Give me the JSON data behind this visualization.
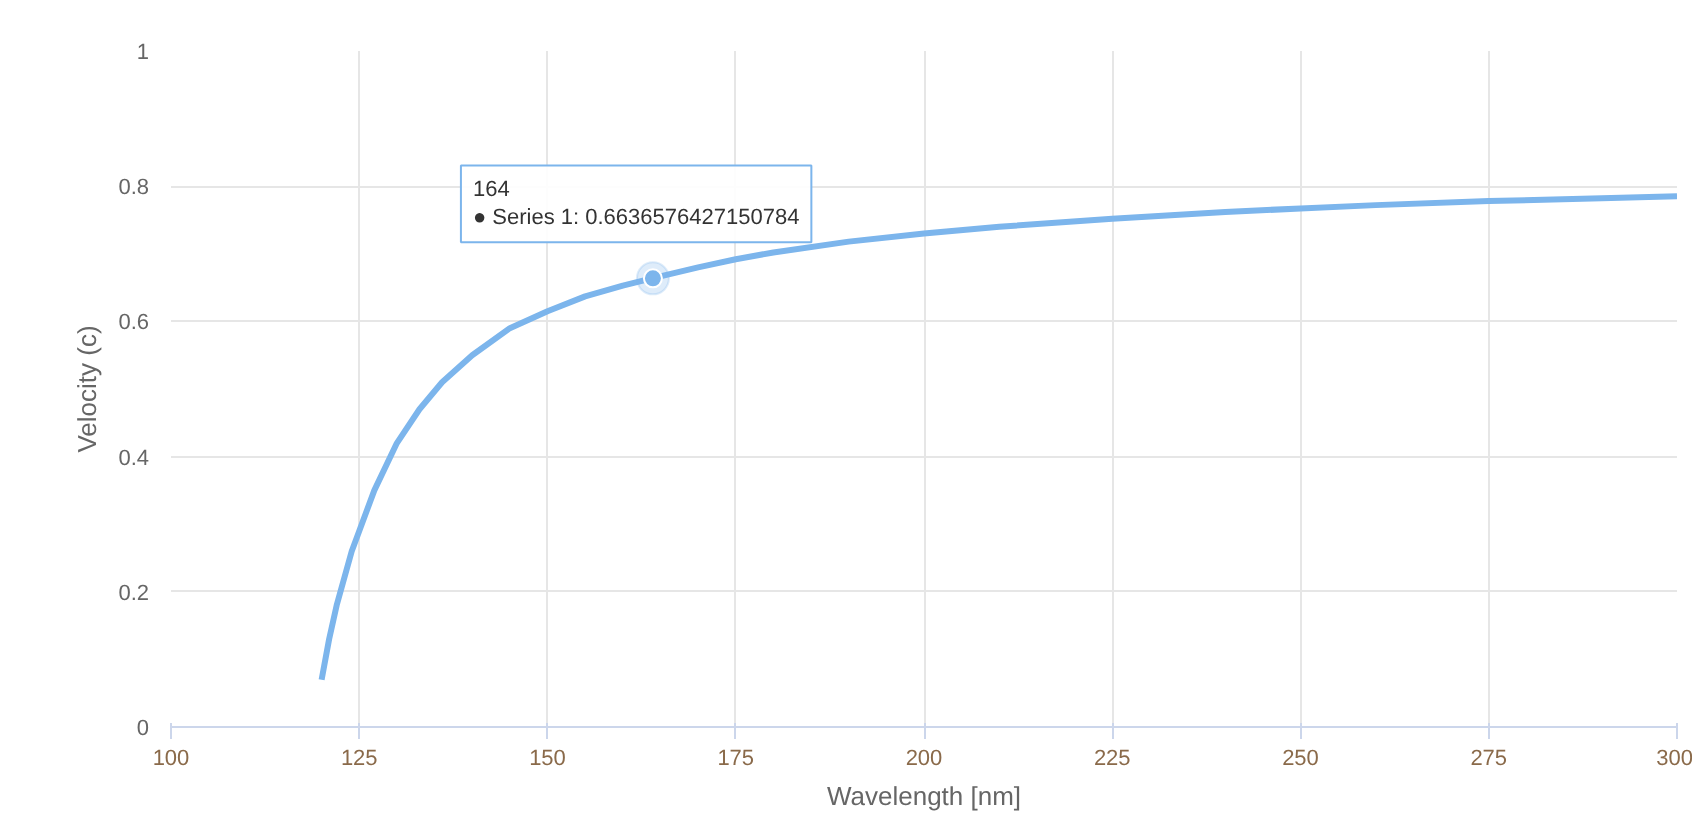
{
  "chart_data": {
    "type": "line",
    "xlabel": "Wavelength [nm]",
    "ylabel": "Velocity (c)",
    "xlim": [
      100,
      300
    ],
    "ylim": [
      0,
      1
    ],
    "xticks": [
      100,
      125,
      150,
      175,
      200,
      225,
      250,
      275,
      300
    ],
    "yticks": [
      0,
      {
        "value": 0.2,
        "label": "0.2"
      },
      {
        "value": 0.4,
        "label": "0.4"
      },
      {
        "value": 0.6,
        "label": "0.6"
      },
      {
        "value": 0.8,
        "label": "0.8"
      },
      1
    ],
    "grid": true,
    "marker": "none",
    "line_style": "solid",
    "x": [
      120,
      121,
      122,
      123,
      124,
      125,
      127,
      130,
      133,
      136,
      140,
      145,
      150,
      155,
      160,
      164,
      170,
      175,
      180,
      190,
      200,
      210,
      225,
      240,
      250,
      260,
      275,
      290,
      300
    ],
    "series": [
      {
        "color": "#7cb5ec",
        "values": [
          0.07,
          0.13,
          0.18,
          0.22,
          0.26,
          0.29,
          0.35,
          0.42,
          0.47,
          0.51,
          0.55,
          0.59,
          0.615,
          0.637,
          0.653,
          0.664,
          0.68,
          0.692,
          0.702,
          0.718,
          0.73,
          0.74,
          0.752,
          0.762,
          0.767,
          0.772,
          0.778,
          0.782,
          0.785
        ]
      }
    ],
    "annotations": [
      {
        "text": "164\n● Series 1: 0.6636576427150784",
        "x": 164,
        "y": 0.6636576427150784
      }
    ]
  }
}
